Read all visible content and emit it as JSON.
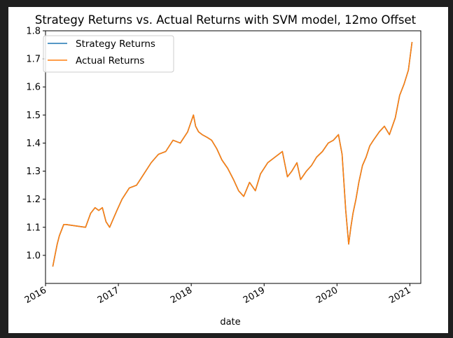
{
  "chart_data": {
    "type": "line",
    "title": "Strategy Returns vs. Actual Returns with SVM model, 12mo Offset",
    "xlabel": "date",
    "ylabel": "",
    "xlim": [
      2016.0,
      2021.15
    ],
    "ylim": [
      0.9,
      1.8
    ],
    "x_ticks": [
      {
        "value": 2016,
        "label": "2016"
      },
      {
        "value": 2017,
        "label": "2017"
      },
      {
        "value": 2018,
        "label": "2018"
      },
      {
        "value": 2019,
        "label": "2019"
      },
      {
        "value": 2020,
        "label": "2020"
      },
      {
        "value": 2021,
        "label": "2021"
      }
    ],
    "y_ticks": [
      {
        "value": 1.0,
        "label": "1.0"
      },
      {
        "value": 1.1,
        "label": "1.1"
      },
      {
        "value": 1.2,
        "label": "1.2"
      },
      {
        "value": 1.3,
        "label": "1.3"
      },
      {
        "value": 1.4,
        "label": "1.4"
      },
      {
        "value": 1.5,
        "label": "1.5"
      },
      {
        "value": 1.6,
        "label": "1.6"
      },
      {
        "value": 1.7,
        "label": "1.7"
      },
      {
        "value": 1.8,
        "label": "1.8"
      }
    ],
    "legend": {
      "placement": "top-left"
    },
    "grid": false,
    "series": [
      {
        "name": "Strategy Returns",
        "color": "#1f77b4",
        "x": [
          2016.1,
          2016.13,
          2016.16,
          2016.19,
          2016.22,
          2016.25,
          2016.28,
          2016.55,
          2016.62,
          2016.68,
          2016.73,
          2016.78,
          2016.83,
          2016.88,
          2016.93,
          2016.98,
          2017.05,
          2017.15,
          2017.25,
          2017.35,
          2017.45,
          2017.55,
          2017.65,
          2017.75,
          2017.85,
          2017.95,
          2018.03,
          2018.06,
          2018.1,
          2018.15,
          2018.22,
          2018.28,
          2018.35,
          2018.42,
          2018.5,
          2018.58,
          2018.65,
          2018.72,
          2018.8,
          2018.88,
          2018.95,
          2019.05,
          2019.15,
          2019.25,
          2019.32,
          2019.38,
          2019.45,
          2019.5,
          2019.58,
          2019.65,
          2019.72,
          2019.8,
          2019.88,
          2019.95,
          2020.02,
          2020.07,
          2020.12,
          2020.16,
          2020.19,
          2020.22,
          2020.26,
          2020.3,
          2020.35,
          2020.4,
          2020.45,
          2020.5,
          2020.58,
          2020.65,
          2020.72,
          2020.8,
          2020.86,
          2020.92,
          2020.98,
          2021.03
        ],
        "y": [
          0.96,
          1.0,
          1.04,
          1.07,
          1.09,
          1.11,
          1.11,
          1.1,
          1.15,
          1.17,
          1.16,
          1.17,
          1.12,
          1.1,
          1.13,
          1.16,
          1.2,
          1.24,
          1.25,
          1.29,
          1.33,
          1.36,
          1.37,
          1.41,
          1.4,
          1.44,
          1.5,
          1.46,
          1.44,
          1.43,
          1.42,
          1.41,
          1.38,
          1.34,
          1.31,
          1.27,
          1.23,
          1.21,
          1.26,
          1.23,
          1.29,
          1.33,
          1.35,
          1.37,
          1.28,
          1.3,
          1.33,
          1.27,
          1.3,
          1.32,
          1.35,
          1.37,
          1.4,
          1.41,
          1.43,
          1.36,
          1.16,
          1.04,
          1.1,
          1.15,
          1.2,
          1.26,
          1.32,
          1.35,
          1.39,
          1.41,
          1.44,
          1.46,
          1.43,
          1.49,
          1.57,
          1.61,
          1.66,
          1.76
        ]
      },
      {
        "name": "Actual Returns",
        "color": "#ff7f0e",
        "x": [
          2016.1,
          2016.13,
          2016.16,
          2016.19,
          2016.22,
          2016.25,
          2016.28,
          2016.55,
          2016.62,
          2016.68,
          2016.73,
          2016.78,
          2016.83,
          2016.88,
          2016.93,
          2016.98,
          2017.05,
          2017.15,
          2017.25,
          2017.35,
          2017.45,
          2017.55,
          2017.65,
          2017.75,
          2017.85,
          2017.95,
          2018.03,
          2018.06,
          2018.1,
          2018.15,
          2018.22,
          2018.28,
          2018.35,
          2018.42,
          2018.5,
          2018.58,
          2018.65,
          2018.72,
          2018.8,
          2018.88,
          2018.95,
          2019.05,
          2019.15,
          2019.25,
          2019.32,
          2019.38,
          2019.45,
          2019.5,
          2019.58,
          2019.65,
          2019.72,
          2019.8,
          2019.88,
          2019.95,
          2020.02,
          2020.07,
          2020.12,
          2020.16,
          2020.19,
          2020.22,
          2020.26,
          2020.3,
          2020.35,
          2020.4,
          2020.45,
          2020.5,
          2020.58,
          2020.65,
          2020.72,
          2020.8,
          2020.86,
          2020.92,
          2020.98,
          2021.03
        ],
        "y": [
          0.96,
          1.0,
          1.04,
          1.07,
          1.09,
          1.11,
          1.11,
          1.1,
          1.15,
          1.17,
          1.16,
          1.17,
          1.12,
          1.1,
          1.13,
          1.16,
          1.2,
          1.24,
          1.25,
          1.29,
          1.33,
          1.36,
          1.37,
          1.41,
          1.4,
          1.44,
          1.5,
          1.46,
          1.44,
          1.43,
          1.42,
          1.41,
          1.38,
          1.34,
          1.31,
          1.27,
          1.23,
          1.21,
          1.26,
          1.23,
          1.29,
          1.33,
          1.35,
          1.37,
          1.28,
          1.3,
          1.33,
          1.27,
          1.3,
          1.32,
          1.35,
          1.37,
          1.4,
          1.41,
          1.43,
          1.36,
          1.16,
          1.04,
          1.1,
          1.15,
          1.2,
          1.26,
          1.32,
          1.35,
          1.39,
          1.41,
          1.44,
          1.46,
          1.43,
          1.49,
          1.57,
          1.61,
          1.66,
          1.76
        ]
      }
    ]
  }
}
